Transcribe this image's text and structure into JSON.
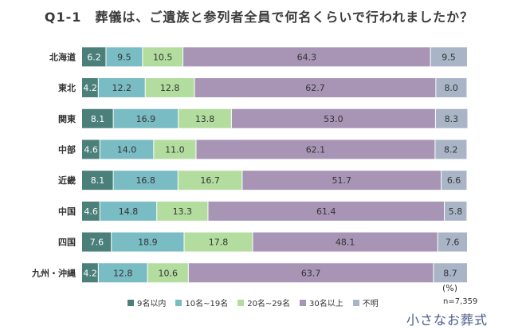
{
  "title": "Q1-1　葬儀は、ご遺族と参列者全員で何名くらいで行われましたか？",
  "unit_label": "(%)",
  "sample_label": "n=7,359",
  "logo_text": "小さなお葬式",
  "colors": [
    "#4a7f7a",
    "#79bcc3",
    "#b3dd9f",
    "#a895b6",
    "#a9b5c6"
  ],
  "chart_data": {
    "type": "bar",
    "orientation": "horizontal",
    "stacked": "100%",
    "title": "Q1-1　葬儀は、ご遺族と参列者全員で何名くらいで行われましたか？",
    "categories": [
      "北海道",
      "東北",
      "関東",
      "中部",
      "近畿",
      "中国",
      "四国",
      "九州・沖縄"
    ],
    "series": [
      {
        "name": "9名以内",
        "values": [
          6.2,
          4.2,
          8.1,
          4.6,
          8.1,
          4.6,
          7.6,
          4.2
        ]
      },
      {
        "name": "10名~19名",
        "values": [
          9.5,
          12.2,
          16.9,
          14.0,
          16.8,
          14.8,
          18.9,
          12.8
        ]
      },
      {
        "name": "20名~29名",
        "values": [
          10.5,
          12.8,
          13.8,
          11.0,
          16.7,
          13.3,
          17.8,
          10.6
        ]
      },
      {
        "name": "30名以上",
        "values": [
          64.3,
          62.7,
          53.0,
          62.1,
          51.7,
          61.4,
          48.1,
          63.7
        ]
      },
      {
        "name": "不明",
        "values": [
          9.5,
          8.0,
          8.3,
          8.2,
          6.6,
          5.8,
          7.6,
          8.7
        ]
      }
    ],
    "xlim": [
      0,
      100
    ],
    "legend": "bottom",
    "grid": false
  }
}
